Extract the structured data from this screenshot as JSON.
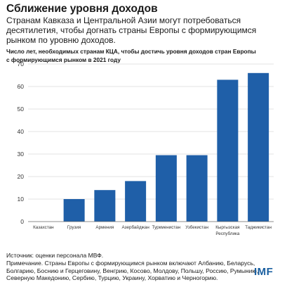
{
  "header": {
    "title": "Сближение уровня доходов",
    "subtitle": "Странам Кавказа и Центральной Азии могут потребоваться десятилетия, чтобы догнать страны Европы с формирующимся рынком по уровню доходов.",
    "chart_title_line1": "Число лет, необходимых странам КЦА, чтобы достичь уровня доходов стран Европы",
    "chart_title_line2": "с формирующимся рынком в 2021 году"
  },
  "notes": {
    "source": "Источник: оценки персонала МВФ.",
    "note_line1": "Примечание. Страны Европы с формирующимся рынком включают Албанию, Беларусь,",
    "note_line2": "Болгарию, Боснию и Герцеговину, Венгрию, Косово, Молдову, Польшу, Россию, Румынию,",
    "note_line3": "Северную Македонию, Сербию, Турцию, Украину, Хорватию и Черногорию."
  },
  "logo": "IMF",
  "chart_data": {
    "type": "bar",
    "categories": [
      "Казахстан",
      "Грузия",
      "Армения",
      "Азербайджан",
      "Туркменистан",
      "Узбекистан",
      [
        "Кыргызская",
        "Республика"
      ],
      "Таджикистан"
    ],
    "values": [
      0,
      10,
      14,
      18,
      29.5,
      29.5,
      63,
      66
    ],
    "ylim": [
      0,
      70
    ],
    "yticks": [
      0,
      10,
      20,
      30,
      40,
      50,
      60,
      70
    ],
    "grid": true,
    "bar_color": "#1f5fa8",
    "grid_color": "#c8c8c8",
    "xlabel": "",
    "ylabel": ""
  }
}
